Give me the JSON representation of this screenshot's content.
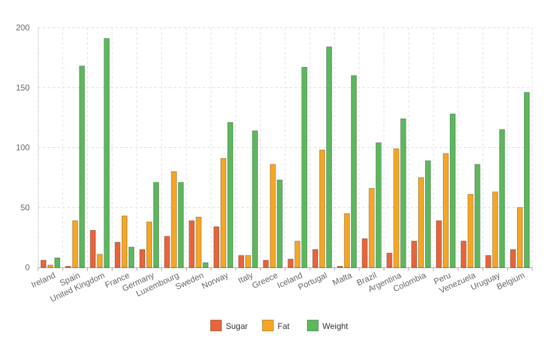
{
  "chart_data": {
    "type": "bar",
    "categories": [
      "Ireland",
      "Spain",
      "United Kingdom",
      "France",
      "Germany",
      "Luxembourg",
      "Sweden",
      "Norway",
      "Italy",
      "Greece",
      "Iceland",
      "Portugal",
      "Malta",
      "Brazil",
      "Argentina",
      "Colombia",
      "Peru",
      "Venezuela",
      "Uruguay",
      "Belgium"
    ],
    "series": [
      {
        "name": "Sugar",
        "color": "#e8643a",
        "values": [
          6,
          1,
          31,
          21,
          15,
          26,
          39,
          34,
          10,
          6,
          7,
          15,
          1,
          24,
          12,
          22,
          39,
          22,
          10,
          15
        ]
      },
      {
        "name": "Fat",
        "color": "#f5a623",
        "values": [
          2,
          39,
          11,
          43,
          38,
          80,
          42,
          91,
          10,
          86,
          22,
          98,
          45,
          66,
          99,
          75,
          95,
          61,
          63,
          50
        ]
      },
      {
        "name": "Weight",
        "color": "#5cb85c",
        "values": [
          8,
          168,
          191,
          17,
          71,
          71,
          4,
          121,
          114,
          73,
          167,
          184,
          160,
          104,
          124,
          89,
          128,
          86,
          115,
          146
        ]
      }
    ],
    "y_ticks": [
      "0",
      "50",
      "100",
      "150",
      "200"
    ],
    "ylim": [
      0,
      200
    ],
    "grid": true,
    "legend_position": "bottom-center"
  }
}
